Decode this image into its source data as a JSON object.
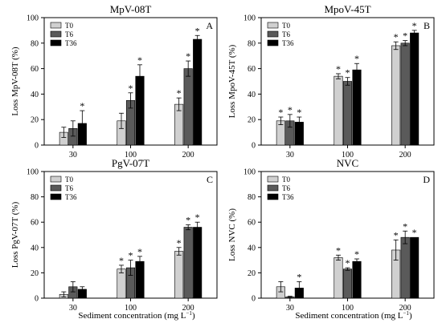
{
  "figure": {
    "xlabel_shared": "Sediment concentration (mg L",
    "xlabel_sup": "−1",
    "xlabel_tail": ")"
  },
  "series_colors": {
    "T0": "#d0d0d0",
    "T6": "#5a5a5a",
    "T36": "#000000"
  },
  "chart_data": [
    {
      "type": "bar",
      "panel": "A",
      "title": "MpV-08T",
      "ylabel": "Loss MpV-08T (%)",
      "xlabel": "",
      "ylim": [
        0,
        100
      ],
      "yticks": [
        0,
        20,
        40,
        60,
        80,
        100
      ],
      "categories": [
        "30",
        "100",
        "200"
      ],
      "legend_position": "top-left",
      "series": [
        {
          "name": "T0",
          "values": [
            10,
            19,
            32
          ],
          "errors": [
            4,
            6,
            5
          ],
          "significant": [
            false,
            false,
            true
          ]
        },
        {
          "name": "T6",
          "values": [
            13,
            35,
            60
          ],
          "errors": [
            6,
            6,
            6
          ],
          "significant": [
            false,
            true,
            true
          ]
        },
        {
          "name": "T36",
          "values": [
            17,
            54,
            83
          ],
          "errors": [
            10,
            9,
            3
          ],
          "significant": [
            true,
            true,
            true
          ]
        }
      ]
    },
    {
      "type": "bar",
      "panel": "B",
      "title": "MpoV-45T",
      "ylabel": "Loss MpoV-45T (%)",
      "xlabel": "",
      "ylim": [
        0,
        100
      ],
      "yticks": [
        0,
        20,
        40,
        60,
        80,
        100
      ],
      "categories": [
        "30",
        "100",
        "200"
      ],
      "legend_position": "top-left",
      "series": [
        {
          "name": "T0",
          "values": [
            19,
            54,
            78
          ],
          "errors": [
            3,
            2,
            3
          ],
          "significant": [
            true,
            true,
            true
          ]
        },
        {
          "name": "T6",
          "values": [
            19,
            50,
            80
          ],
          "errors": [
            5,
            3,
            2
          ],
          "significant": [
            true,
            true,
            true
          ]
        },
        {
          "name": "T36",
          "values": [
            18,
            59,
            88
          ],
          "errors": [
            4,
            5,
            2
          ],
          "significant": [
            true,
            true,
            true
          ]
        }
      ]
    },
    {
      "type": "bar",
      "panel": "C",
      "title": "PgV-07T",
      "ylabel": "Loss PgV-07T (%)",
      "xlabel": "",
      "ylim": [
        0,
        100
      ],
      "yticks": [
        0,
        20,
        40,
        60,
        80,
        100
      ],
      "categories": [
        "30",
        "100",
        "200"
      ],
      "legend_position": "top-left",
      "series": [
        {
          "name": "T0",
          "values": [
            3,
            23,
            37
          ],
          "errors": [
            2,
            3,
            3
          ],
          "significant": [
            false,
            true,
            true
          ]
        },
        {
          "name": "T6",
          "values": [
            9,
            24,
            56
          ],
          "errors": [
            4,
            6,
            2
          ],
          "significant": [
            false,
            true,
            true
          ]
        },
        {
          "name": "T36",
          "values": [
            7,
            29,
            56
          ],
          "errors": [
            2,
            4,
            4
          ],
          "significant": [
            false,
            true,
            true
          ]
        }
      ]
    },
    {
      "type": "bar",
      "panel": "D",
      "title": "NVC",
      "ylabel": "Loss NVC (%)",
      "xlabel": "",
      "ylim": [
        0,
        100
      ],
      "yticks": [
        0,
        20,
        40,
        60,
        80,
        100
      ],
      "categories": [
        "30",
        "100",
        "200"
      ],
      "legend_position": "top-left",
      "series": [
        {
          "name": "T0",
          "values": [
            9,
            32,
            38
          ],
          "errors": [
            4,
            2,
            8
          ],
          "significant": [
            false,
            true,
            true
          ]
        },
        {
          "name": "T6",
          "values": [
            1,
            23,
            48
          ],
          "errors": [
            0.5,
            1,
            5
          ],
          "significant": [
            false,
            true,
            true
          ]
        },
        {
          "name": "T36",
          "values": [
            8,
            29,
            48
          ],
          "errors": [
            5,
            2,
            0
          ],
          "significant": [
            true,
            true,
            true
          ]
        }
      ]
    }
  ]
}
